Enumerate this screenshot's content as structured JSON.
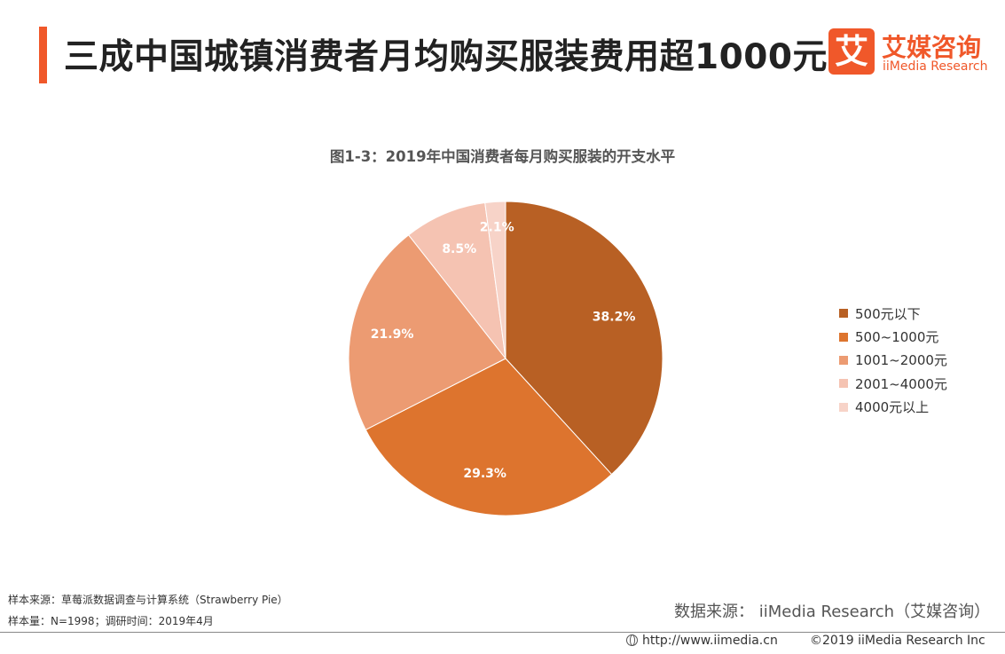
{
  "header": {
    "title": "三成中国城镇消费者月均购买服装费用超1000元",
    "logo_mark": "艾",
    "logo_cn": "艾媒咨询",
    "logo_en": "iiMedia Research"
  },
  "chart_data": {
    "type": "pie",
    "title": "图1-3：2019年中国消费者每月购买服装的开支水平",
    "categories": [
      "500元以下",
      "500~1000元",
      "1001~2000元",
      "2001~4000元",
      "4000元以上"
    ],
    "values": [
      38.2,
      29.3,
      21.9,
      8.5,
      2.1
    ],
    "data_labels": [
      "38.2%",
      "29.3%",
      "21.9%",
      "8.5%",
      "2.1%"
    ],
    "colors": [
      "#b86024",
      "#dd742e",
      "#ec9b72",
      "#f5c3b2",
      "#f7d3c8"
    ],
    "legend_position": "right"
  },
  "footer": {
    "sample_source": "样本来源：草莓派数据调查与计算系统（Strawberry Pie）",
    "sample_size": "样本量：N=1998；调研时间：2019年4月",
    "data_source": "数据来源： iiMedia Research（艾媒咨询）",
    "url": "http://www.iimedia.cn",
    "copyright": "©2019  iiMedia Research  Inc"
  }
}
